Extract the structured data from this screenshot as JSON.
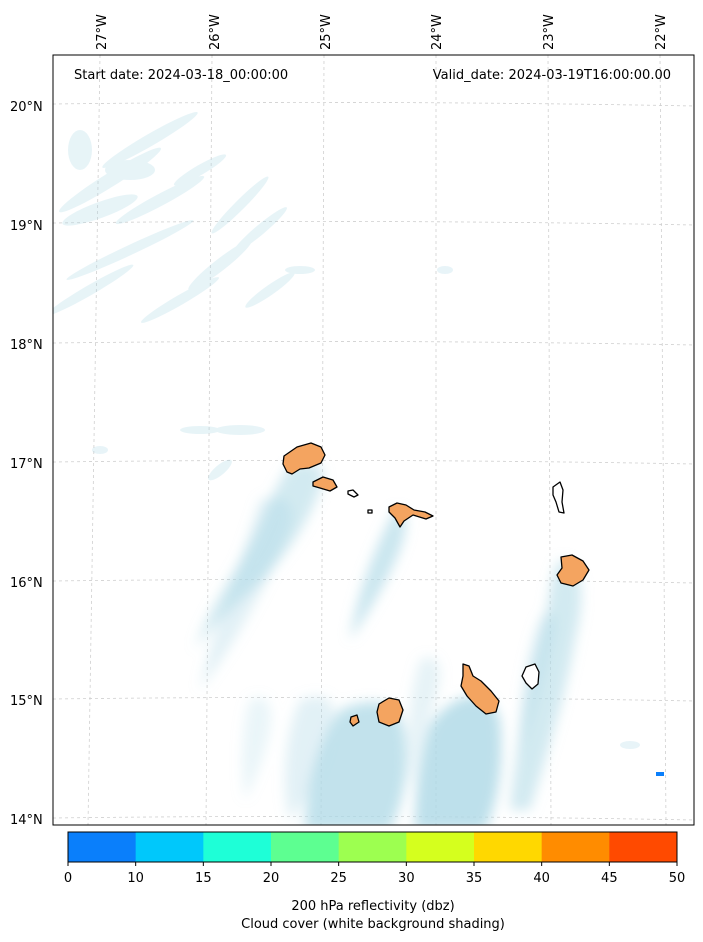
{
  "header": {
    "start_date": "Start date: 2024-03-18_00:00:00",
    "valid_date": "Valid_date: 2024-03-19T16:00:00.00"
  },
  "map": {
    "lon_ticks": [
      "27°W",
      "26°W",
      "25°W",
      "24°W",
      "23°W",
      "22°W"
    ],
    "lat_ticks": [
      "20°N",
      "19°N",
      "18°N",
      "17°N",
      "16°N",
      "15°N",
      "14°N"
    ],
    "gridlines": "dashed",
    "islands": [
      "Santo Antão",
      "São Vicente",
      "Santa Luzia",
      "São Nicolau",
      "Sal",
      "Boa Vista",
      "Maio",
      "Santiago",
      "Fogo",
      "Brava"
    ]
  },
  "colorbar": {
    "ticks": [
      "0",
      "10",
      "15",
      "20",
      "25",
      "30",
      "35",
      "40",
      "45",
      "50"
    ],
    "colors": [
      "#0a7ffb",
      "#00c8fb",
      "#1effd7",
      "#5dff91",
      "#9dff50",
      "#d5ff1e",
      "#ffd800",
      "#ff8c00",
      "#ff4a00"
    ]
  },
  "labels": {
    "reflectivity": "200 hPa reflectivity (dbz)",
    "cloud_cover": "Cloud cover (white background shading)"
  },
  "colors": {
    "cloud": "#add8e6",
    "island_fill": "#f4a460",
    "coastline": "#000000"
  }
}
